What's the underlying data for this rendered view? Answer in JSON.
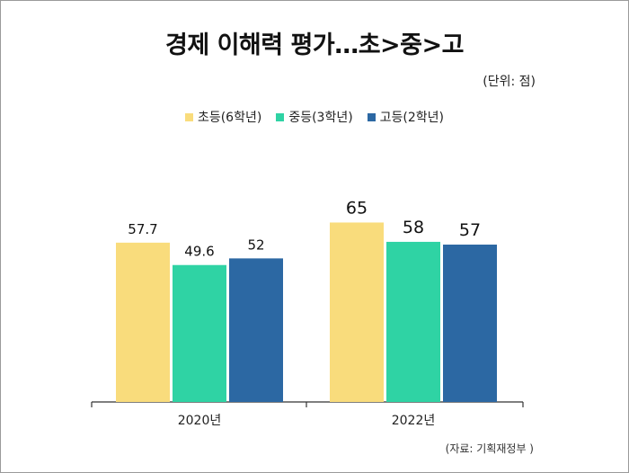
{
  "chart_data": {
    "type": "bar",
    "title": "경제 이해력 평가…초>중>고",
    "unit_label": "(단위: 점)",
    "source": "(자료: 기획재정부 )",
    "categories": [
      "2020년",
      "2022년"
    ],
    "series": [
      {
        "name": "초등(6학년)",
        "color": "#f9dc7c",
        "values": [
          57.7,
          65
        ]
      },
      {
        "name": "중등(3학년)",
        "color": "#2fd3a4",
        "values": [
          49.6,
          58
        ]
      },
      {
        "name": "고등(2학년)",
        "color": "#2c68a3",
        "values": [
          52,
          57
        ]
      }
    ],
    "value_labels": [
      [
        "57.7",
        "65"
      ],
      [
        "49.6",
        "58"
      ],
      [
        "52",
        "57"
      ]
    ],
    "ylim": [
      0,
      75
    ],
    "grid": false,
    "legend_position": "top-center"
  }
}
